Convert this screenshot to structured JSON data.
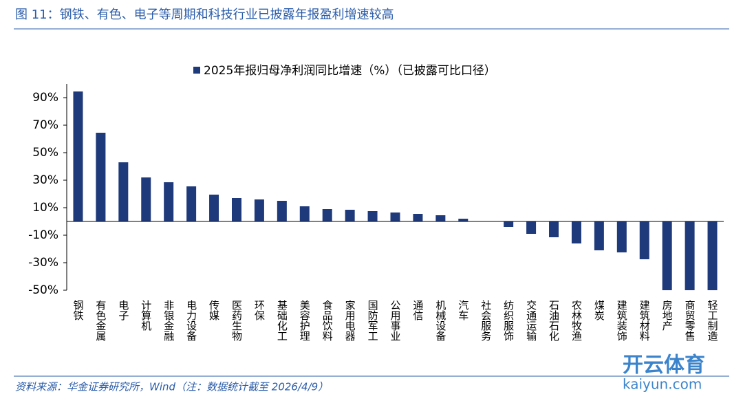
{
  "chart_data": {
    "type": "bar",
    "title": "图 11：钢铁、有色、电子等周期和科技行业已披露年报盈利增速较高",
    "source": "资料来源：华金证券研究所，Wind（注：数据统计截至 2026/4/9）",
    "watermark": [
      "开云体育",
      "kaiyun.com"
    ],
    "categories": [
      "钢铁",
      "有色金属",
      "电子",
      "计算机",
      "非银金融",
      "电力设备",
      "传媒",
      "医药生物",
      "环保",
      "基础化工",
      "美容护理",
      "食品饮料",
      "家用电器",
      "国防军工",
      "公用事业",
      "通信",
      "机械设备",
      "汽车",
      "社会服务",
      "纺织服饰",
      "交通运输",
      "石油石化",
      "农林牧渔",
      "煤炭",
      "建筑装饰",
      "建筑材料",
      "房地产",
      "商贸零售",
      "轻工制造"
    ],
    "series": [
      {
        "name": "2025年报归母净利润同比增速（%）（已披露可比口径）",
        "color": "#1f3a7a",
        "values": [
          94.5,
          64.5,
          43,
          32,
          28.5,
          25.5,
          19.5,
          17,
          16,
          15,
          11,
          9,
          8.5,
          7.5,
          6.5,
          5.5,
          4.5,
          2,
          0,
          -4,
          -9,
          -11.5,
          -16,
          -21,
          -22.5,
          -27.5,
          -50,
          -50,
          -50
        ]
      }
    ],
    "ylim": [
      -50,
      100
    ],
    "yticks": [
      {
        "value": -50,
        "label": "-50%"
      },
      {
        "value": -30,
        "label": "-30%"
      },
      {
        "value": -10,
        "label": "-10%"
      },
      {
        "value": 10,
        "label": "10%"
      },
      {
        "value": 30,
        "label": "30%"
      },
      {
        "value": 50,
        "label": "50%"
      },
      {
        "value": 70,
        "label": "70%"
      },
      {
        "value": 90,
        "label": "90%"
      }
    ],
    "legend": "top"
  }
}
